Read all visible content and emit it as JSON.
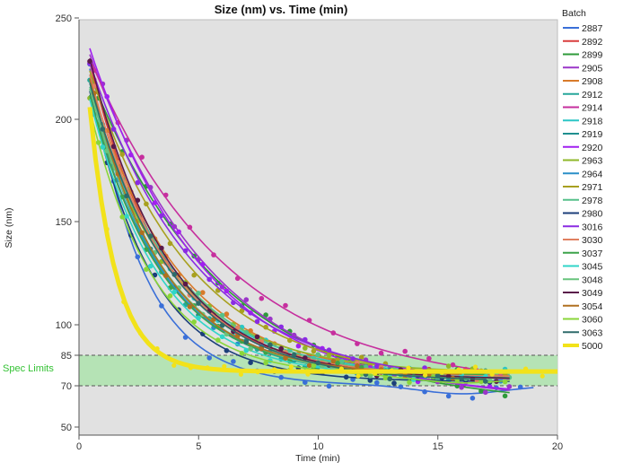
{
  "chart_data": {
    "type": "line",
    "title": "Size (nm) vs. Time (min)",
    "xlabel": "Time (min)",
    "ylabel": "Size (nm)",
    "xlim": [
      0,
      20
    ],
    "ylim": [
      48,
      250
    ],
    "x_ticks": [
      0,
      5,
      10,
      15,
      20
    ],
    "y_ticks": [
      50,
      70,
      85,
      100,
      150,
      200,
      250
    ],
    "grid": false,
    "legend_title": "Batch",
    "legend_position": "right",
    "spec_limits": {
      "label": "Spec Limits",
      "lower": 70,
      "upper": 85,
      "color": "#b5e3b5"
    },
    "series": [
      {
        "name": "2887",
        "color": "#3a6fd8",
        "start": 225,
        "end": 70,
        "tau": 2.2,
        "tEnd": 19,
        "dip": 4
      },
      {
        "name": "2892",
        "color": "#d93d3d",
        "start": 228,
        "end": 74,
        "tau": 3.2,
        "tEnd": 18
      },
      {
        "name": "2899",
        "color": "#2e9a3a",
        "start": 222,
        "end": 60,
        "tau": 5.5,
        "tEnd": 18
      },
      {
        "name": "2905",
        "color": "#9b36c8",
        "start": 232,
        "end": 62,
        "tau": 5.2,
        "tEnd": 18
      },
      {
        "name": "2908",
        "color": "#d87b2a",
        "start": 220,
        "end": 74,
        "tau": 3.6,
        "tEnd": 18
      },
      {
        "name": "2912",
        "color": "#26a69a",
        "start": 218,
        "end": 74,
        "tau": 3.0,
        "tEnd": 17
      },
      {
        "name": "2914",
        "color": "#c62f9e",
        "start": 230,
        "end": 68,
        "tau": 5.8,
        "tEnd": 18
      },
      {
        "name": "2918",
        "color": "#2bc6c6",
        "start": 215,
        "end": 75,
        "tau": 3.4,
        "tEnd": 18
      },
      {
        "name": "2919",
        "color": "#1f8f8f",
        "start": 220,
        "end": 75,
        "tau": 3.0,
        "tEnd": 17
      },
      {
        "name": "2920",
        "color": "#a020f0",
        "start": 235,
        "end": 64,
        "tau": 4.8,
        "tEnd": 18
      },
      {
        "name": "2963",
        "color": "#8fb82a",
        "start": 210,
        "end": 76,
        "tau": 3.5,
        "tEnd": 17
      },
      {
        "name": "2964",
        "color": "#2a8fc8",
        "start": 212,
        "end": 74,
        "tau": 3.1,
        "tEnd": 18
      },
      {
        "name": "2971",
        "color": "#a8a020",
        "start": 224,
        "end": 72,
        "tau": 4.2,
        "tEnd": 18
      },
      {
        "name": "2978",
        "color": "#56c08a",
        "start": 216,
        "end": 73,
        "tau": 3.6,
        "tEnd": 18
      },
      {
        "name": "2980",
        "color": "#1c3f7a",
        "start": 214,
        "end": 72,
        "tau": 2.6,
        "tEnd": 18
      },
      {
        "name": "3016",
        "color": "#8a2be2",
        "start": 228,
        "end": 70,
        "tau": 4.5,
        "tEnd": 18
      },
      {
        "name": "3030",
        "color": "#e08060",
        "start": 222,
        "end": 74,
        "tau": 3.3,
        "tEnd": 18
      },
      {
        "name": "3037",
        "color": "#3da34a",
        "start": 212,
        "end": 75,
        "tau": 3.0,
        "tEnd": 17
      },
      {
        "name": "3045",
        "color": "#30d5c8",
        "start": 210,
        "end": 74,
        "tau": 2.9,
        "tEnd": 17
      },
      {
        "name": "3048",
        "color": "#68c47d",
        "start": 215,
        "end": 73,
        "tau": 3.2,
        "tEnd": 18
      },
      {
        "name": "3049",
        "color": "#5a1a4a",
        "start": 230,
        "end": 73,
        "tau": 3.3,
        "tEnd": 18
      },
      {
        "name": "3054",
        "color": "#b07020",
        "start": 220,
        "end": 75,
        "tau": 3.0,
        "tEnd": 16
      },
      {
        "name": "3060",
        "color": "#8ad63a",
        "start": 205,
        "end": 74,
        "tau": 2.7,
        "tEnd": 18,
        "dip": 3
      },
      {
        "name": "3063",
        "color": "#2f6b6b",
        "start": 218,
        "end": 72,
        "tau": 3.4,
        "tEnd": 17
      },
      {
        "name": "5000",
        "color": "#f2e21a",
        "start": 206,
        "end": 77,
        "tau": 1.1,
        "tEnd": 20,
        "bold": true
      }
    ]
  }
}
